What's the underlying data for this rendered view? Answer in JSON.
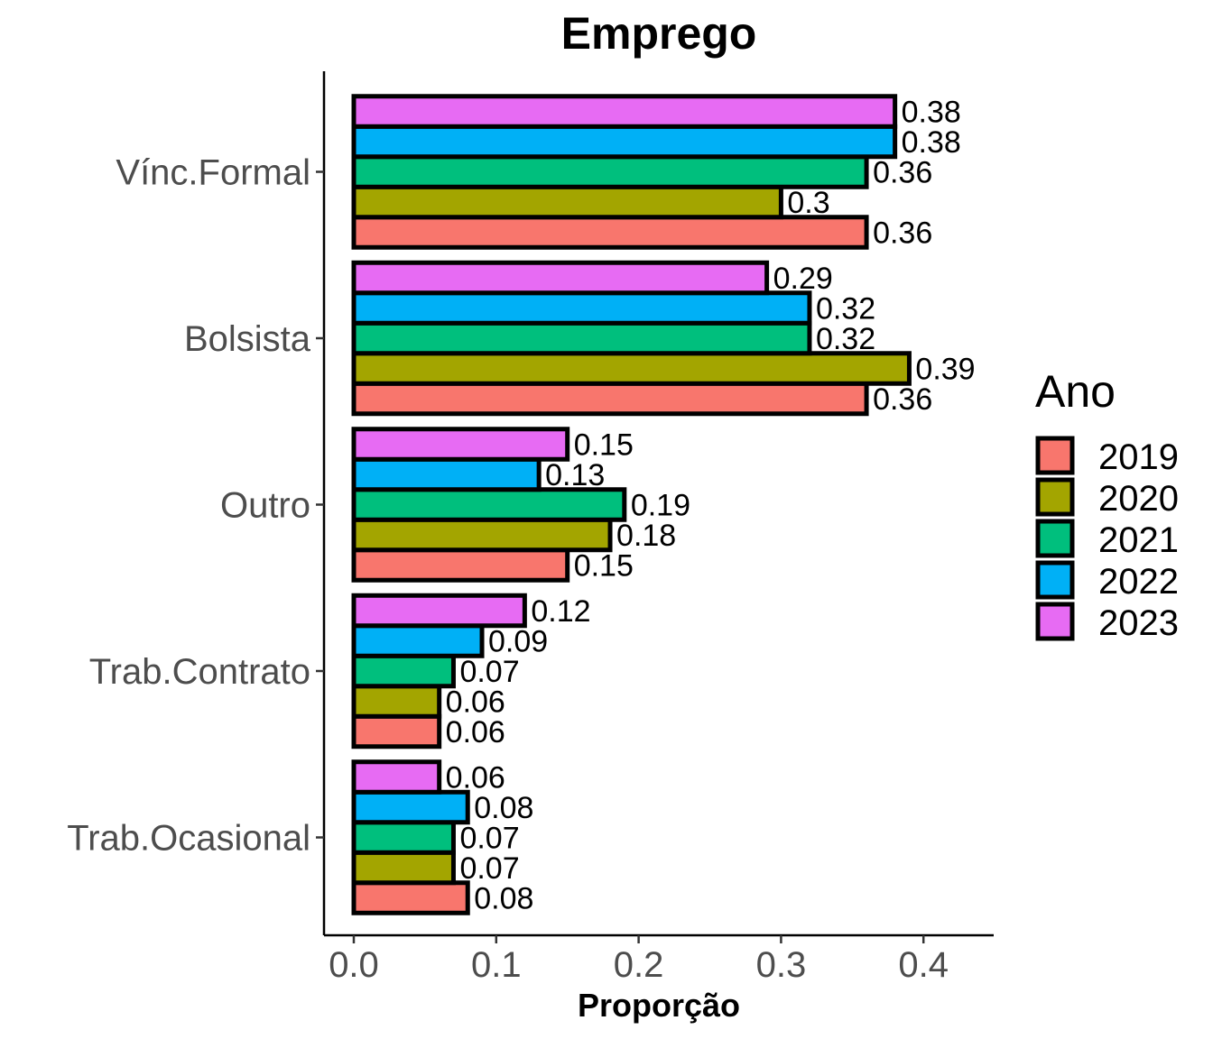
{
  "chart_data": {
    "type": "bar",
    "orientation": "horizontal",
    "title": "Emprego",
    "xlabel": "Proporção",
    "ylabel": "",
    "categories": [
      "Vínc.Formal",
      "Bolsista",
      "Outro",
      "Trab.Contrato",
      "Trab.Ocasional"
    ],
    "series": [
      {
        "name": "2019",
        "color": "#F8766D",
        "values": [
          0.36,
          0.36,
          0.15,
          0.06,
          0.08
        ],
        "labels": [
          "0.36",
          "0.36",
          "0.15",
          "0.06",
          "0.08"
        ]
      },
      {
        "name": "2020",
        "color": "#A3A500",
        "values": [
          0.3,
          0.39,
          0.18,
          0.06,
          0.07
        ],
        "labels": [
          "0.3",
          "0.39",
          "0.18",
          "0.06",
          "0.07"
        ]
      },
      {
        "name": "2021",
        "color": "#00BF7D",
        "values": [
          0.36,
          0.32,
          0.19,
          0.07,
          0.07
        ],
        "labels": [
          "0.36",
          "0.32",
          "0.19",
          "0.07",
          "0.07"
        ]
      },
      {
        "name": "2022",
        "color": "#00B0F6",
        "values": [
          0.38,
          0.32,
          0.13,
          0.09,
          0.08
        ],
        "labels": [
          "0.38",
          "0.32",
          "0.13",
          "0.09",
          "0.08"
        ]
      },
      {
        "name": "2023",
        "color": "#E76BF3",
        "values": [
          0.38,
          0.29,
          0.15,
          0.12,
          0.06
        ],
        "labels": [
          "0.38",
          "0.29",
          "0.15",
          "0.12",
          "0.06"
        ]
      }
    ],
    "xlim": [
      -0.021,
      0.45
    ],
    "xticks": [
      0.0,
      0.1,
      0.2,
      0.3,
      0.4
    ],
    "xtick_labels": [
      "0.0",
      "0.1",
      "0.2",
      "0.3",
      "0.4"
    ],
    "legend": {
      "title": "Ano",
      "position": "right"
    },
    "grid": false
  }
}
